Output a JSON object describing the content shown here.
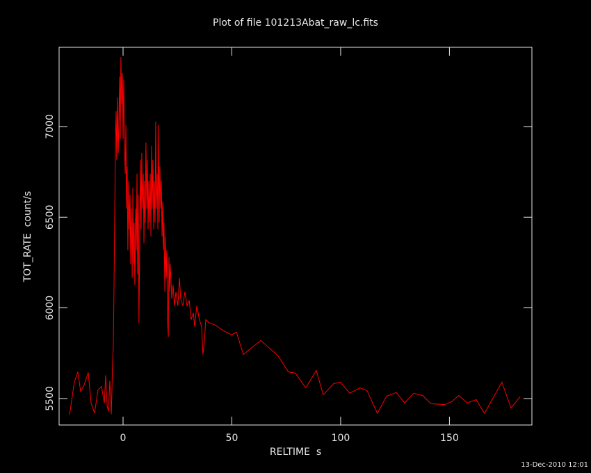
{
  "chart_data": {
    "type": "line",
    "title": "Plot of file 101213Abat_raw_lc.fits",
    "xlabel": "RELTIME  s",
    "ylabel": "TOT_RATE  count/s",
    "footer": "13-Dec-2010 12:01",
    "xlim": [
      -29.4,
      187.9
    ],
    "xticks": [
      0,
      50,
      100,
      150
    ],
    "ylim": [
      5354,
      7437
    ],
    "yticks": [
      5500,
      6000,
      6500,
      7000
    ],
    "x": [
      -24.6,
      -22.4,
      -20.8,
      -19.5,
      -17.9,
      -16.0,
      -14.7,
      -13.1,
      -11.5,
      -9.9,
      -8.6,
      -8.0,
      -7.3,
      -6.7,
      -6.1,
      -5.4,
      -4.8,
      -4.5,
      -4.2,
      -3.5,
      -3.2,
      -2.9,
      -2.6,
      -2.2,
      -1.9,
      -1.6,
      -1.3,
      -1.0,
      -0.6,
      -0.3,
      0,
      0.3,
      0.6,
      1.0,
      1.3,
      1.6,
      1.9,
      2.2,
      2.6,
      2.9,
      3.2,
      3.5,
      3.8,
      4.2,
      4.5,
      4.8,
      5.1,
      5.4,
      5.8,
      6.1,
      6.4,
      6.7,
      7.0,
      7.3,
      8.0,
      8.3,
      8.6,
      8.9,
      9.3,
      9.6,
      9.9,
      10.2,
      10.5,
      10.9,
      11.2,
      11.5,
      11.8,
      12.1,
      12.5,
      12.8,
      13.1,
      13.4,
      13.7,
      14.1,
      14.4,
      14.7,
      15.0,
      15.3,
      15.7,
      16.0,
      16.3,
      16.6,
      16.9,
      17.3,
      17.6,
      17.9,
      18.2,
      18.5,
      18.8,
      19.2,
      19.5,
      19.8,
      20.1,
      20.4,
      20.8,
      21.1,
      21.4,
      21.7,
      22.4,
      23.0,
      23.6,
      24.3,
      25.2,
      25.9,
      26.5,
      27.5,
      28.4,
      29.4,
      30.4,
      31.3,
      32.3,
      32.9,
      33.9,
      34.5,
      35.1,
      36.1,
      36.7,
      37.4,
      38.0,
      39.3,
      42.5,
      45.7,
      49.8,
      52.1,
      55.3,
      63.3,
      71.2,
      76.0,
      79.2,
      84.0,
      88.8,
      92.0,
      96.8,
      99.9,
      104.2,
      108.9,
      112.1,
      116.9,
      121.1,
      125.6,
      129.4,
      133.5,
      137.7,
      141.5,
      147.9,
      151.1,
      154.3,
      158.1,
      162.3,
      166.1,
      174.1,
      178.3,
      182.5
    ],
    "series": [
      {
        "color": "#ff0000",
        "values": [
          5410,
          5590,
          5647,
          5540,
          5575,
          5644,
          5475,
          5420,
          5548,
          5567,
          5475,
          5628,
          5456,
          5430,
          5598,
          5414,
          5705,
          5782,
          6069,
          6931,
          7084,
          6816,
          7161,
          6854,
          7046,
          7276,
          6931,
          7383,
          7123,
          7295,
          6931,
          7257,
          6893,
          6740,
          7008,
          6548,
          6778,
          6318,
          6701,
          6433,
          6625,
          6241,
          6548,
          6165,
          6663,
          6241,
          6471,
          6126,
          6548,
          6318,
          6740,
          6184,
          6625,
          5916,
          6816,
          6433,
          6854,
          6548,
          6740,
          6356,
          6701,
          6471,
          6912,
          6548,
          6816,
          6433,
          6701,
          6471,
          6740,
          6394,
          6893,
          6548,
          6816,
          6433,
          6701,
          6471,
          7027,
          6548,
          6740,
          6433,
          7008,
          6471,
          6778,
          6548,
          6701,
          6394,
          6586,
          6318,
          6471,
          6088,
          6394,
          6165,
          6318,
          5935,
          5839,
          6280,
          6088,
          6241,
          6050,
          6126,
          6011,
          6088,
          6011,
          6165,
          6050,
          6011,
          6088,
          6011,
          6042,
          5935,
          5973,
          5897,
          6011,
          5973,
          5935,
          5897,
          5743,
          5820,
          5935,
          5920,
          5904,
          5877,
          5851,
          5866,
          5743,
          5820,
          5736,
          5647,
          5640,
          5559,
          5655,
          5521,
          5582,
          5590,
          5529,
          5559,
          5544,
          5418,
          5513,
          5533,
          5475,
          5529,
          5517,
          5471,
          5467,
          5483,
          5517,
          5475,
          5494,
          5418,
          5590,
          5448,
          5510
        ]
      }
    ]
  }
}
